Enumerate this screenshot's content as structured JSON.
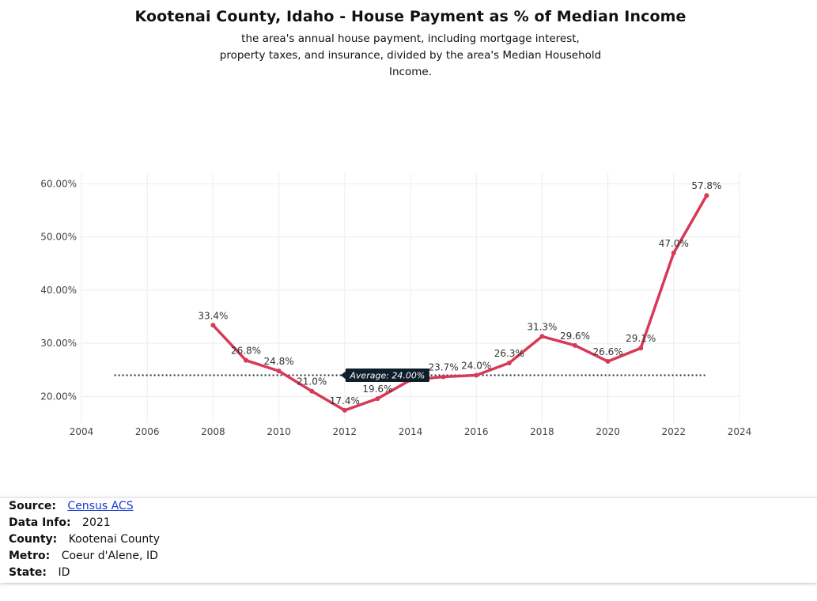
{
  "header": {
    "title": "Kootenai County, Idaho - House Payment as % of Median Income",
    "subtitle_lines": [
      "the area's annual house payment, including mortgage interest,",
      "property taxes, and insurance, divided by the area's Median Household",
      "Income."
    ]
  },
  "chart_data": {
    "type": "line",
    "title": "Kootenai County, Idaho - House Payment as % of Median Income",
    "x": [
      2008,
      2009,
      2010,
      2011,
      2012,
      2013,
      2014,
      2015,
      2016,
      2017,
      2018,
      2019,
      2020,
      2021,
      2022,
      2023
    ],
    "series": [
      {
        "values": [
          33.4,
          26.8,
          24.8,
          21.0,
          17.4,
          19.6,
          23.1,
          23.7,
          24.0,
          26.3,
          31.3,
          29.6,
          26.6,
          29.1,
          47.0,
          57.8
        ],
        "labels": [
          "33.4%",
          "26.8%",
          "24.8%",
          "21.0%",
          "17.4%",
          "19.6%",
          "",
          "23.7%",
          "24.0%",
          "26.3%",
          "31.3%",
          "29.6%",
          "26.6%",
          "29.1%",
          "47.0%",
          "57.8%"
        ],
        "color": "#d63a56"
      }
    ],
    "average": {
      "value": 24.0,
      "label": "Average: 24.00%",
      "x_range": [
        2005,
        2023
      ]
    },
    "xlim": [
      2004,
      2024
    ],
    "ylim": [
      15,
      62
    ],
    "x_ticks": [
      2004,
      2006,
      2008,
      2010,
      2012,
      2014,
      2016,
      2018,
      2020,
      2022,
      2024
    ],
    "y_ticks": [
      20,
      30,
      40,
      50,
      60
    ],
    "y_tick_labels": [
      "20.00%",
      "30.00%",
      "40.00%",
      "50.00%",
      "60.00%"
    ],
    "grid": true
  },
  "info": {
    "source_label": "Source:",
    "source_value": "Census ACS",
    "data_info_label": "Data Info:",
    "data_info_value": "2021",
    "county_label": "County:",
    "county_value": "Kootenai County",
    "metro_label": "Metro:",
    "metro_value": "Coeur d'Alene, ID",
    "state_label": "State:",
    "state_value": "ID"
  }
}
